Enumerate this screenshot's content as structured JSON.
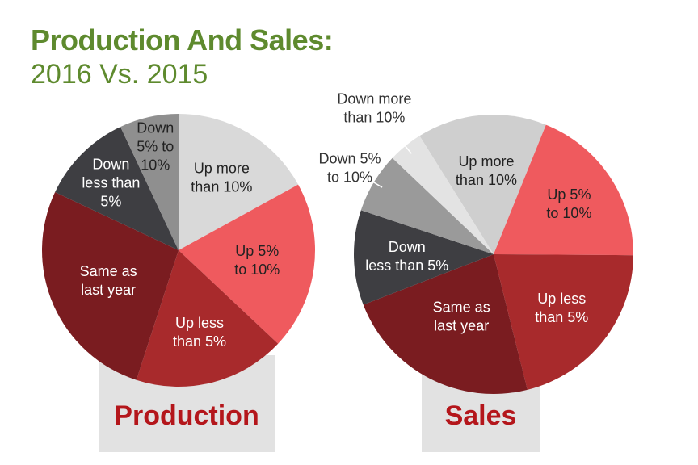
{
  "header": {
    "title": "Production And Sales:",
    "subtitle": "2016 Vs. 2015"
  },
  "chart_data": [
    {
      "type": "pie",
      "title": "Production",
      "categories": [
        "Up more than 10%",
        "Up 5% to 10%",
        "Up less than 5%",
        "Same as last year",
        "Down less than 5%",
        "Down 5% to 10%"
      ],
      "values": [
        17,
        20,
        18,
        27,
        11,
        7
      ],
      "label_lines": [
        [
          "Up more",
          "than 10%"
        ],
        [
          "Up 5%",
          "to 10%"
        ],
        [
          "Up less",
          "than 5%"
        ],
        [
          "Same as",
          "last year"
        ],
        [
          "Down",
          "less than",
          "5%"
        ],
        [
          "Down",
          "5% to",
          "10%"
        ]
      ],
      "colors": [
        "#d9d9d9",
        "#ef5a5e",
        "#a82a2c",
        "#7a1c20",
        "#3e3e42",
        "#8f8f8f"
      ]
    },
    {
      "type": "pie",
      "title": "Sales",
      "categories": [
        "Up more than 10%",
        "Up 5% to 10%",
        "Up less than 5%",
        "Same as last year",
        "Down less than 5%",
        "Down 5% to 10%",
        "Down more than 10%"
      ],
      "values": [
        15,
        19,
        21,
        23,
        11,
        7,
        4
      ],
      "label_lines": [
        [
          "Up more",
          "than 10%"
        ],
        [
          "Up 5%",
          "to 10%"
        ],
        [
          "Up less",
          "than 5%"
        ],
        [
          "Same as",
          "last year"
        ],
        [
          "Down",
          "less than 5%"
        ],
        [
          "Down 5%",
          "to 10%"
        ],
        [
          "Down more",
          "than 10%"
        ]
      ],
      "colors": [
        "#cfcfcf",
        "#ef5a5e",
        "#a82a2c",
        "#7a1c20",
        "#3e3e42",
        "#9a9a9a",
        "#e3e3e3"
      ]
    }
  ]
}
